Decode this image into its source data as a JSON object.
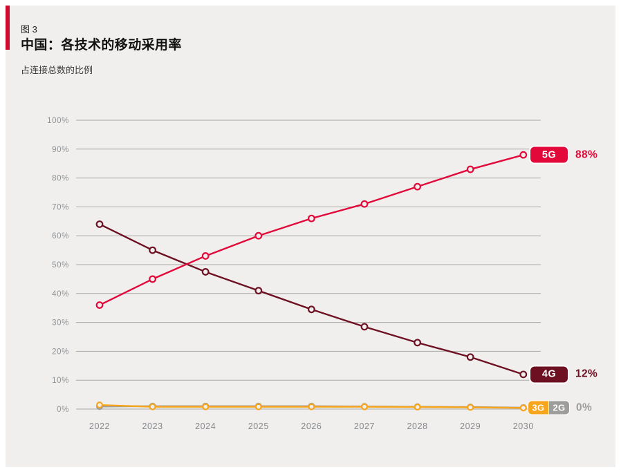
{
  "figure": {
    "label": "图 3",
    "title": "中国：各技术的移动采用率",
    "subtitle": "占连接总数的比例"
  },
  "colors": {
    "page_bg": "#ffffff",
    "panel_bg": "#f0efed",
    "accent_bar": "#ce0a2f",
    "grid": "#a9a8a5",
    "y_label": "#8e9195",
    "x_label": "#85888c",
    "badge_halo": "#fcfcfb",
    "5g": "#e2083a",
    "4g": "#6d1022",
    "3g": "#f7a51d",
    "2g": "#9d9d9c"
  },
  "chart_data": {
    "type": "line",
    "title": "中国：各技术的移动采用率",
    "subtitle": "占连接总数的比例",
    "x": [
      2022,
      2023,
      2024,
      2025,
      2026,
      2027,
      2028,
      2029,
      2030
    ],
    "ylim": [
      0,
      100
    ],
    "y_tick_labels": [
      "0%",
      "10%",
      "20%",
      "30%",
      "40%",
      "50%",
      "60%",
      "70%",
      "80%",
      "90%",
      "100%"
    ],
    "grid": "horizontal",
    "legend_position": "right-end-badges",
    "series": [
      {
        "name": "2G",
        "color": "#9d9d9c",
        "marker_r": 3.9,
        "values": [
          0.9,
          1.0,
          1.0,
          1.0,
          1.0,
          0.9,
          0.8,
          0.7,
          0.5
        ]
      },
      {
        "name": "3G",
        "color": "#f7a51d",
        "marker_r": 3.9,
        "values": [
          1.4,
          0.8,
          0.8,
          0.8,
          0.8,
          0.8,
          0.7,
          0.6,
          0.4
        ]
      },
      {
        "name": "4G",
        "color": "#6d1022",
        "marker_r": 4.3,
        "values": [
          64,
          55,
          47.5,
          41,
          34.5,
          28.5,
          23,
          18,
          12
        ]
      },
      {
        "name": "5G",
        "color": "#e2083a",
        "marker_r": 4.3,
        "values": [
          36,
          45,
          53,
          60,
          66,
          71,
          77,
          83,
          88
        ]
      }
    ],
    "annotations": [
      {
        "series": [
          "5G"
        ],
        "value_label": "88%",
        "value_color": "#e2083a"
      },
      {
        "series": [
          "4G"
        ],
        "value_label": "12%",
        "value_color": "#6d1022"
      },
      {
        "series": [
          "3G",
          "2G"
        ],
        "value_label": "0%",
        "value_color": "#9d9d9c"
      }
    ]
  }
}
